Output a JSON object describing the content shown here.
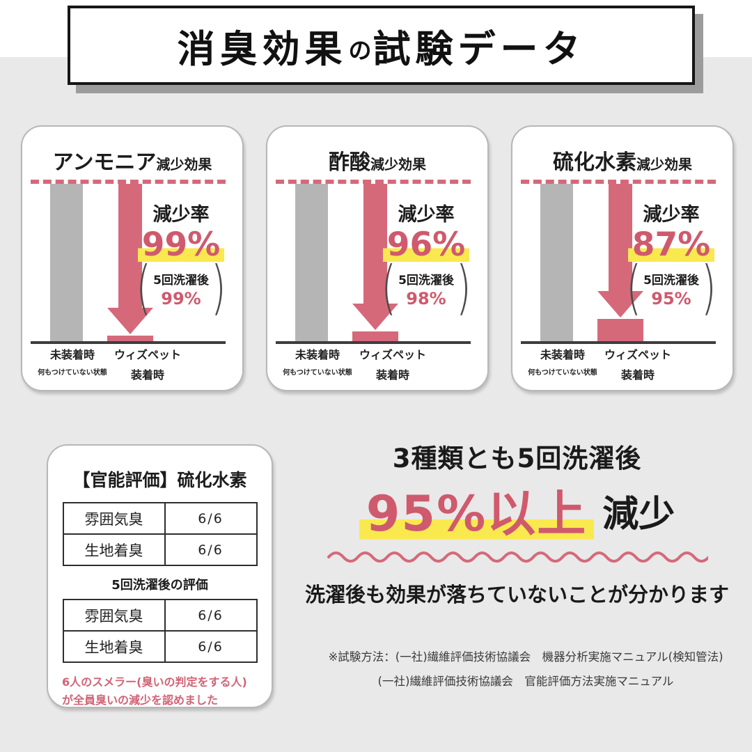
{
  "header": {
    "title_main": "消臭効果",
    "title_particle": "の",
    "title_rest": "試験データ"
  },
  "punct": {
    "open": "(",
    "close": ")"
  },
  "panels": [
    {
      "title": "アンモニア",
      "title_suffix": "減少効果",
      "rate_label": "減少率",
      "rate_value": "99%",
      "washed_label": "5回洗濯後",
      "washed_value": "99%",
      "label_unattached": "未装着時",
      "label_unattached_sub": "何もつけていない状態",
      "label_attached_line1": "ウィズペット",
      "label_attached_line2": "装着時",
      "remain_pct": 1
    },
    {
      "title": "酢酸",
      "title_suffix": "減少効果",
      "rate_label": "減少率",
      "rate_value": "96%",
      "washed_label": "5回洗濯後",
      "washed_value": "98%",
      "label_unattached": "未装着時",
      "label_unattached_sub": "何もつけていない状態",
      "label_attached_line1": "ウィズペット",
      "label_attached_line2": "装着時",
      "remain_pct": 4
    },
    {
      "title": "硫化水素",
      "title_suffix": "減少効果",
      "rate_label": "減少率",
      "rate_value": "87%",
      "washed_label": "5回洗濯後",
      "washed_value": "95%",
      "label_unattached": "未装着時",
      "label_unattached_sub": "何もつけていない状態",
      "label_attached_line1": "ウィズペット",
      "label_attached_line2": "装着時",
      "remain_pct": 13
    }
  ],
  "sensory": {
    "title": "【官能評価】硫化水素",
    "tables": [
      {
        "rows": [
          [
            "雰囲気臭",
            "6/6"
          ],
          [
            "生地着臭",
            "6/6"
          ]
        ]
      },
      {
        "rows": [
          [
            "雰囲気臭",
            "6/6"
          ],
          [
            "生地着臭",
            "6/6"
          ]
        ]
      }
    ],
    "mid_heading": "5回洗濯後の評価",
    "note_line1": "6人のスメラー(臭いの判定をする人)",
    "note_line2": "が全員臭いの減少を認めました"
  },
  "summary": {
    "line1": "3種類とも5回洗濯後",
    "big": "95%以上",
    "big_suffix": "減少",
    "line2": "洗濯後も効果が落ちていないことが分かります"
  },
  "footnote": {
    "line1": "※試験方法：(一社)繊維評価技術協議会　機器分析実施マニュアル(検知管法)",
    "line2": "(一社)繊維評価技術協議会　官能評価方法実施マニュアル"
  },
  "colors": {
    "background_gray": "#e9e9e9",
    "accent_pink": "#d5697a",
    "number_pink": "#cf5a6d",
    "highlight_yellow": "#f9e94f",
    "bar_gray": "#b5b5b5",
    "baseline_dark": "#3d3d3d",
    "banner_shadow": "#9c9c9c"
  },
  "chart_data": [
    {
      "type": "bar",
      "title": "アンモニア減少効果",
      "categories": [
        "未装着時（何もつけていない状態）",
        "ウィズペット装着時"
      ],
      "values": [
        100,
        1
      ],
      "annotations": {
        "減少率": "99%",
        "5回洗濯後": "99%"
      },
      "ylim": [
        0,
        100
      ],
      "legend_position": "none"
    },
    {
      "type": "bar",
      "title": "酢酸減少効果",
      "categories": [
        "未装着時（何もつけていない状態）",
        "ウィズペット装着時"
      ],
      "values": [
        100,
        4
      ],
      "annotations": {
        "減少率": "96%",
        "5回洗濯後": "98%"
      },
      "ylim": [
        0,
        100
      ],
      "legend_position": "none"
    },
    {
      "type": "bar",
      "title": "硫化水素減少効果",
      "categories": [
        "未装着時（何もつけていない状態）",
        "ウィズペット装着時"
      ],
      "values": [
        100,
        13
      ],
      "annotations": {
        "減少率": "87%",
        "5回洗濯後": "95%"
      },
      "ylim": [
        0,
        100
      ],
      "legend_position": "none"
    },
    {
      "type": "table",
      "title": "【官能評価】硫化水素",
      "rows": [
        [
          "雰囲気臭",
          "6/6"
        ],
        [
          "生地着臭",
          "6/6"
        ]
      ]
    },
    {
      "type": "table",
      "title": "5回洗濯後の評価",
      "rows": [
        [
          "雰囲気臭",
          "6/6"
        ],
        [
          "生地着臭",
          "6/6"
        ]
      ]
    }
  ]
}
